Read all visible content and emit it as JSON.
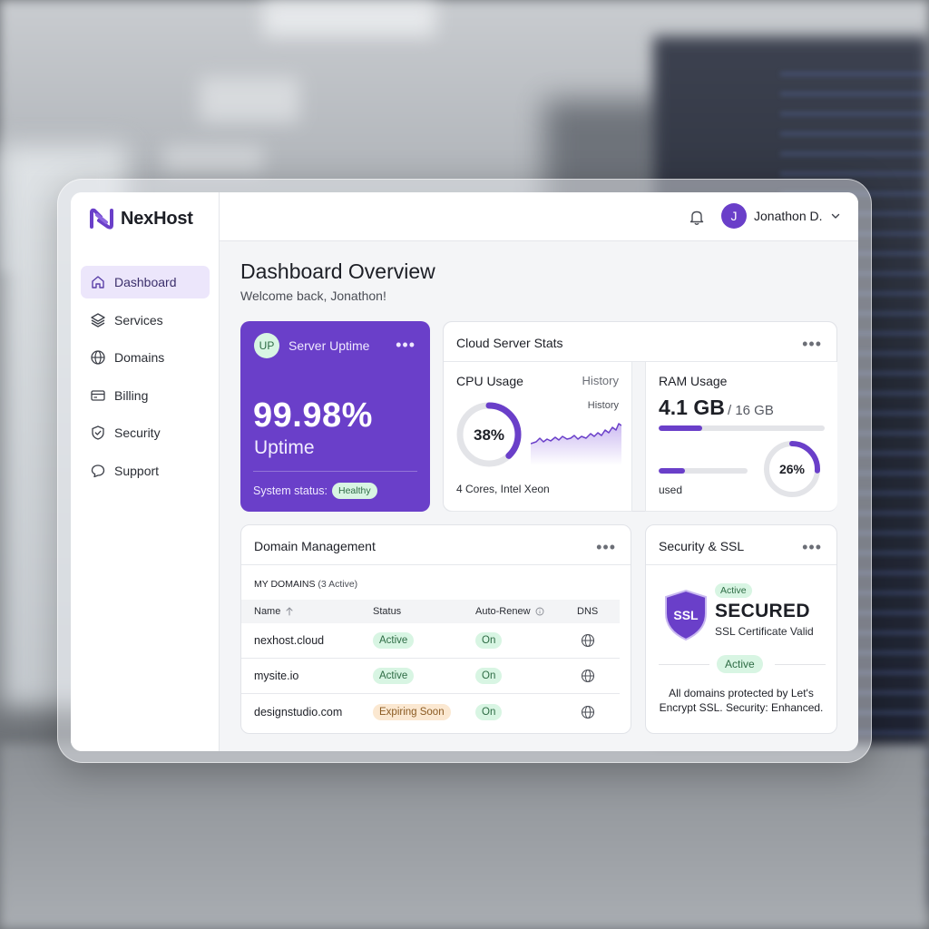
{
  "brand": {
    "name": "NexHost"
  },
  "sidebar": {
    "items": [
      {
        "label": "Dashboard",
        "icon": "home-icon",
        "active": true
      },
      {
        "label": "Services",
        "icon": "layers-icon"
      },
      {
        "label": "Domains",
        "icon": "globe-icon"
      },
      {
        "label": "Billing",
        "icon": "credit-card-icon"
      },
      {
        "label": "Security",
        "icon": "shield-check-icon"
      },
      {
        "label": "Support",
        "icon": "chat-icon"
      }
    ]
  },
  "header": {
    "user_initial": "J",
    "user_name": "Jonathon D."
  },
  "page": {
    "title": "Dashboard Overview",
    "subtitle": "Welcome back, Jonathon!"
  },
  "uptime": {
    "badge": "UP",
    "title": "Server Uptime",
    "value": "99.98%",
    "label": "Uptime",
    "status_label": "System status:",
    "status_value": "Healthy"
  },
  "cloud": {
    "title": "Cloud Server Stats",
    "cpu": {
      "title": "CPU Usage",
      "history_label": "History",
      "history_small": "History",
      "percent": 38,
      "percent_text": "38%",
      "footer": "4 Cores, Intel Xeon"
    },
    "ram": {
      "title": "RAM Usage",
      "value": "4.1 GB",
      "total": "/ 16 GB",
      "fill_fraction": 0.26,
      "percent": 26,
      "percent_text": "26%",
      "used_label": "used"
    }
  },
  "domains": {
    "title": "Domain Management",
    "list_label": "MY DOMAINS",
    "list_count": "(3 Active)",
    "columns": {
      "name": "Name",
      "status": "Status",
      "renew": "Auto-Renew",
      "dns": "DNS"
    },
    "rows": [
      {
        "name": "nexhost.cloud",
        "status": "Active",
        "renew": "On"
      },
      {
        "name": "mysite.io",
        "status": "Active",
        "renew": "On"
      },
      {
        "name": "designstudio.com",
        "status": "Expiring Soon",
        "renew": "On"
      }
    ]
  },
  "security": {
    "title": "Security & SSL",
    "shield_text": "SSL",
    "badge_small": "Active",
    "headline": "SECURED",
    "sub": "SSL Certificate Valid",
    "badge_mid": "Active",
    "note": "All domains protected by Let's Encrypt SSL. Security: Enhanced."
  },
  "colors": {
    "accent": "#6a3fc9",
    "accent_light": "#ece6fb",
    "success_bg": "#d8f5e3",
    "success_text": "#2e6c45",
    "warning_bg": "#fbe8d1"
  }
}
